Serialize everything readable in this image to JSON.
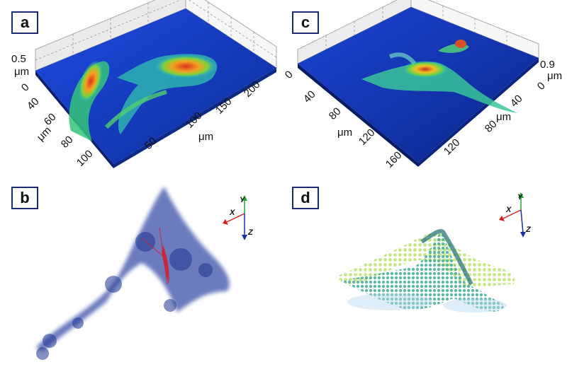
{
  "panels": {
    "a": {
      "label": "a",
      "z_tick": "0.5",
      "z_unit": "μm",
      "y_ticks": [
        "0",
        "40",
        "60",
        "80",
        "100"
      ],
      "y_unit": "μm",
      "x_ticks": [
        "50",
        "100",
        "150",
        "200"
      ],
      "x_unit": "μm"
    },
    "b": {
      "label": "b",
      "axes": {
        "x": "X",
        "y": "Y",
        "z": "Z"
      }
    },
    "c": {
      "label": "c",
      "z_tick": "0.9",
      "z_unit": "μm",
      "left_ticks": [
        "0",
        "40",
        "80",
        "120",
        "160"
      ],
      "left_unit": "μm",
      "right_ticks": [
        "0",
        "40",
        "80",
        "120"
      ],
      "right_unit": "μm"
    },
    "d": {
      "label": "d",
      "axes": {
        "x": "X",
        "y": "Y",
        "z": "Z"
      }
    }
  },
  "colors": {
    "surface_base": "#1a3fc4",
    "surface_peak": "#d8341f",
    "volume_b": "#2a3f9c",
    "volume_b_accent": "#d51c2a",
    "volume_d": "#2aa38a",
    "axis_x": "#d62020",
    "axis_y": "#22a833",
    "axis_z": "#1a2fa8"
  }
}
